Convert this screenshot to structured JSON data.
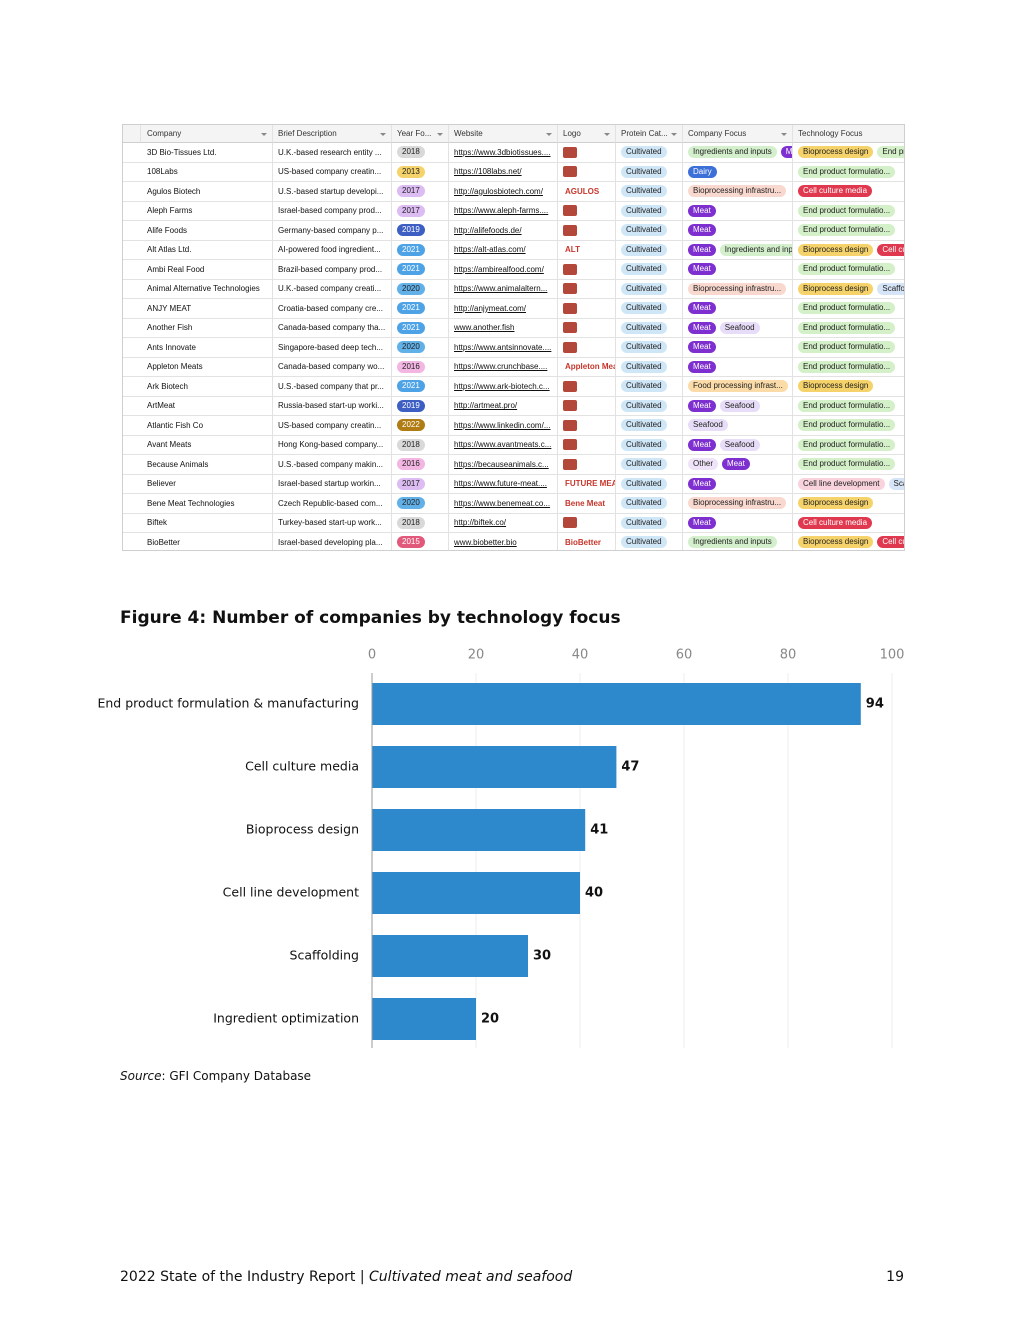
{
  "table": {
    "columns": [
      "Company",
      "Brief Description",
      "Year Fo...",
      "Website",
      "Logo",
      "Protein Cat...",
      "Company Focus",
      "Technology Focus"
    ],
    "rows": [
      {
        "company": "3D Bio-Tissues Ltd.",
        "description": "U.K.-based research entity ...",
        "year": {
          "text": "2018",
          "color": "#d9d9d9"
        },
        "website": "https://www.3dbiotissues....",
        "protein": {
          "text": "Cultivated",
          "color": "#cfe6f7"
        },
        "company_focus": [
          {
            "text": "Ingredients and inputs",
            "color": "#d3efcc"
          },
          {
            "text": "M",
            "color": "#7d2fd0"
          }
        ],
        "tech_focus": [
          {
            "text": "Bioprocess design",
            "color": "#f6d36a"
          },
          {
            "text": "End pr",
            "color": "#d4f0c8"
          }
        ]
      },
      {
        "company": "108Labs",
        "description": "US-based company creatin...",
        "year": {
          "text": "2013",
          "color": "#f6d36a"
        },
        "website": "https://108labs.net/",
        "protein": {
          "text": "Cultivated",
          "color": "#cfe6f7"
        },
        "company_focus": [
          {
            "text": "Dairy",
            "color": "#3d6fd8"
          }
        ],
        "tech_focus": [
          {
            "text": "End product formulatio...",
            "color": "#d4f0c8"
          }
        ]
      },
      {
        "company": "Agulos Biotech",
        "description": "U.S.-based startup developi...",
        "year": {
          "text": "2017",
          "color": "#dcbcf2"
        },
        "website": "http://agulosbiotech.com/",
        "logo": "AGULOS",
        "protein": {
          "text": "Cultivated",
          "color": "#cfe6f7"
        },
        "company_focus": [
          {
            "text": "Bioprocessing infrastru...",
            "color": "#f9d8cf"
          }
        ],
        "tech_focus": [
          {
            "text": "Cell culture media",
            "color": "#e0394f"
          }
        ]
      },
      {
        "company": "Aleph Farms",
        "description": "Israel-based company prod...",
        "year": {
          "text": "2017",
          "color": "#dcbcf2"
        },
        "website": "https://www.aleph-farms....",
        "protein": {
          "text": "Cultivated",
          "color": "#cfe6f7"
        },
        "company_focus": [
          {
            "text": "Meat",
            "color": "#7d2fd0"
          }
        ],
        "tech_focus": [
          {
            "text": "End product formulatio...",
            "color": "#d4f0c8"
          }
        ]
      },
      {
        "company": "Alife Foods",
        "description": "Germany-based company p...",
        "year": {
          "text": "2019",
          "color": "#3d5fc4"
        },
        "website": "http://alifefoods.de/",
        "protein": {
          "text": "Cultivated",
          "color": "#cfe6f7"
        },
        "company_focus": [
          {
            "text": "Meat",
            "color": "#7d2fd0"
          }
        ],
        "tech_focus": [
          {
            "text": "End product formulatio...",
            "color": "#d4f0c8"
          }
        ]
      },
      {
        "company": "Alt Atlas Ltd.",
        "description": "AI-powered food ingredient...",
        "year": {
          "text": "2021",
          "color": "#4ea3e6"
        },
        "website": "https://alt-atlas.com/",
        "logo": "ALT",
        "protein": {
          "text": "Cultivated",
          "color": "#cfe6f7"
        },
        "company_focus": [
          {
            "text": "Meat",
            "color": "#7d2fd0"
          },
          {
            "text": "Ingredients and inp",
            "color": "#d3efcc"
          }
        ],
        "tech_focus": [
          {
            "text": "Bioprocess design",
            "color": "#f6d36a"
          },
          {
            "text": "Cell cu",
            "color": "#e0394f"
          }
        ]
      },
      {
        "company": "Ambi Real Food",
        "description": "Brazil-based company prod...",
        "year": {
          "text": "2021",
          "color": "#4ea3e6"
        },
        "website": "https://ambirealfood.com/",
        "protein": {
          "text": "Cultivated",
          "color": "#cfe6f7"
        },
        "company_focus": [
          {
            "text": "Meat",
            "color": "#7d2fd0"
          }
        ],
        "tech_focus": [
          {
            "text": "End product formulatio...",
            "color": "#d4f0c8"
          }
        ]
      },
      {
        "company": "Animal Alternative Technologies",
        "description": "U.K.-based company creati...",
        "year": {
          "text": "2020",
          "color": "#62b0e8"
        },
        "website": "https://www.animalaltern...",
        "protein": {
          "text": "Cultivated",
          "color": "#cfe6f7"
        },
        "company_focus": [
          {
            "text": "Bioprocessing infrastru...",
            "color": "#f9d8cf"
          }
        ],
        "tech_focus": [
          {
            "text": "Bioprocess design",
            "color": "#f6d36a"
          },
          {
            "text": "Scaffo",
            "color": "#d6e4f7"
          }
        ]
      },
      {
        "company": "ANJY MEAT",
        "description": "Croatia-based company cre...",
        "year": {
          "text": "2021",
          "color": "#4ea3e6"
        },
        "website": "http://anjymeat.com/",
        "protein": {
          "text": "Cultivated",
          "color": "#cfe6f7"
        },
        "company_focus": [
          {
            "text": "Meat",
            "color": "#7d2fd0"
          }
        ],
        "tech_focus": [
          {
            "text": "End product formulatio...",
            "color": "#d4f0c8"
          }
        ]
      },
      {
        "company": "Another Fish",
        "description": "Canada-based company tha...",
        "year": {
          "text": "2021",
          "color": "#4ea3e6"
        },
        "website": "www.another.fish",
        "protein": {
          "text": "Cultivated",
          "color": "#cfe6f7"
        },
        "company_focus": [
          {
            "text": "Meat",
            "color": "#7d2fd0"
          },
          {
            "text": "Seafood",
            "color": "#e8ddf8"
          }
        ],
        "tech_focus": [
          {
            "text": "End product formulatio...",
            "color": "#d4f0c8"
          }
        ]
      },
      {
        "company": "Ants Innovate",
        "description": "Singapore-based deep tech...",
        "year": {
          "text": "2020",
          "color": "#62b0e8"
        },
        "website": "https://www.antsinnovate....",
        "protein": {
          "text": "Cultivated",
          "color": "#cfe6f7"
        },
        "company_focus": [
          {
            "text": "Meat",
            "color": "#7d2fd0"
          }
        ],
        "tech_focus": [
          {
            "text": "End product formulatio...",
            "color": "#d4f0c8"
          }
        ]
      },
      {
        "company": "Appleton Meats",
        "description": "Canada-based company wo...",
        "year": {
          "text": "2016",
          "color": "#f3b6e2"
        },
        "website": "https://www.crunchbase....",
        "logo": "Appleton Meats",
        "protein": {
          "text": "Cultivated",
          "color": "#cfe6f7"
        },
        "company_focus": [
          {
            "text": "Meat",
            "color": "#7d2fd0"
          }
        ],
        "tech_focus": [
          {
            "text": "End product formulatio...",
            "color": "#d4f0c8"
          }
        ]
      },
      {
        "company": "Ark Biotech",
        "description": "U.S.-based company that pr...",
        "year": {
          "text": "2021",
          "color": "#4ea3e6"
        },
        "website": "https://www.ark-biotech.c...",
        "protein": {
          "text": "Cultivated",
          "color": "#cfe6f7"
        },
        "company_focus": [
          {
            "text": "Food processing infrast...",
            "color": "#fbdca8"
          }
        ],
        "tech_focus": [
          {
            "text": "Bioprocess design",
            "color": "#f6d36a"
          }
        ]
      },
      {
        "company": "ArtMeat",
        "description": "Russia-based start-up worki...",
        "year": {
          "text": "2019",
          "color": "#3d5fc4"
        },
        "website": "http://artmeat.pro/",
        "protein": {
          "text": "Cultivated",
          "color": "#cfe6f7"
        },
        "company_focus": [
          {
            "text": "Meat",
            "color": "#7d2fd0"
          },
          {
            "text": "Seafood",
            "color": "#e8ddf8"
          }
        ],
        "tech_focus": [
          {
            "text": "End product formulatio...",
            "color": "#d4f0c8"
          }
        ]
      },
      {
        "company": "Atlantic Fish Co",
        "description": "US-based company creatin...",
        "year": {
          "text": "2022",
          "color": "#b07d14"
        },
        "website": "https://www.linkedin.com/...",
        "protein": {
          "text": "Cultivated",
          "color": "#cfe6f7"
        },
        "company_focus": [
          {
            "text": "Seafood",
            "color": "#e8ddf8"
          }
        ],
        "tech_focus": [
          {
            "text": "End product formulatio...",
            "color": "#d4f0c8"
          }
        ]
      },
      {
        "company": "Avant Meats",
        "description": "Hong Kong-based company...",
        "year": {
          "text": "2018",
          "color": "#d9d9d9"
        },
        "website": "https://www.avantmeats.c...",
        "protein": {
          "text": "Cultivated",
          "color": "#cfe6f7"
        },
        "company_focus": [
          {
            "text": "Meat",
            "color": "#7d2fd0"
          },
          {
            "text": "Seafood",
            "color": "#e8ddf8"
          }
        ],
        "tech_focus": [
          {
            "text": "End product formulatio...",
            "color": "#d4f0c8"
          }
        ]
      },
      {
        "company": "Because Animals",
        "description": "U.S.-based company makin...",
        "year": {
          "text": "2016",
          "color": "#f3b6e2"
        },
        "website": "https://becauseanimals.c...",
        "protein": {
          "text": "Cultivated",
          "color": "#cfe6f7"
        },
        "company_focus": [
          {
            "text": "Other",
            "color": "#eee3f8"
          },
          {
            "text": "Meat",
            "color": "#7d2fd0"
          }
        ],
        "tech_focus": [
          {
            "text": "End product formulatio...",
            "color": "#d4f0c8"
          }
        ]
      },
      {
        "company": "Believer",
        "description": "Israel-based startup workin...",
        "year": {
          "text": "2017",
          "color": "#dcbcf2"
        },
        "website": "https://www.future-meat....",
        "logo": "FUTURE MEAT",
        "protein": {
          "text": "Cultivated",
          "color": "#cfe6f7"
        },
        "company_focus": [
          {
            "text": "Meat",
            "color": "#7d2fd0"
          }
        ],
        "tech_focus": [
          {
            "text": "Cell line development",
            "color": "#f9d3dc"
          },
          {
            "text": "Sca",
            "color": "#d6e4f7"
          }
        ]
      },
      {
        "company": "Bene Meat Technologies",
        "description": "Czech Republic-based com...",
        "year": {
          "text": "2020",
          "color": "#62b0e8"
        },
        "website": "https://www.benemeat.co...",
        "logo": "Bene Meat",
        "protein": {
          "text": "Cultivated",
          "color": "#cfe6f7"
        },
        "company_focus": [
          {
            "text": "Bioprocessing infrastru...",
            "color": "#f9d8cf"
          }
        ],
        "tech_focus": [
          {
            "text": "Bioprocess design",
            "color": "#f6d36a"
          }
        ]
      },
      {
        "company": "Biftek",
        "description": "Turkey-based start-up work...",
        "year": {
          "text": "2018",
          "color": "#d9d9d9"
        },
        "website": "http://biftek.co/",
        "protein": {
          "text": "Cultivated",
          "color": "#cfe6f7"
        },
        "company_focus": [
          {
            "text": "Meat",
            "color": "#7d2fd0"
          }
        ],
        "tech_focus": [
          {
            "text": "Cell culture media",
            "color": "#e0394f"
          }
        ]
      },
      {
        "company": "BioBetter",
        "description": "Israel-based developing pla...",
        "year": {
          "text": "2015",
          "color": "#e2587a"
        },
        "website": "www.biobetter.bio",
        "logo": "BioBetter",
        "protein": {
          "text": "Cultivated",
          "color": "#cfe6f7"
        },
        "company_focus": [
          {
            "text": "Ingredients and inputs",
            "color": "#d3efcc"
          }
        ],
        "tech_focus": [
          {
            "text": "Bioprocess design",
            "color": "#f6d36a"
          },
          {
            "text": "Cell cu",
            "color": "#e0394f"
          }
        ]
      }
    ]
  },
  "figure": {
    "chart_data": {
      "type": "bar",
      "orientation": "horizontal",
      "title": "Figure 4: Number of companies by technology focus",
      "categories": [
        "End product formulation & manufacturing",
        "Cell culture media",
        "Bioprocess design",
        "Cell line development",
        "Scaffolding",
        "Ingredient optimization"
      ],
      "values": [
        94,
        47,
        41,
        40,
        30,
        20
      ],
      "color": "#2e88cc",
      "xlim": [
        0,
        100
      ],
      "xticks": [
        0,
        20,
        40,
        60,
        80,
        100
      ],
      "grid": true
    }
  },
  "source": {
    "label": "Source",
    "text": ": GFI Company Database"
  },
  "footer": {
    "title": "2022 State of the Industry Report",
    "separator": "|",
    "subtitle": "Cultivated meat and seafood",
    "page": "19"
  }
}
